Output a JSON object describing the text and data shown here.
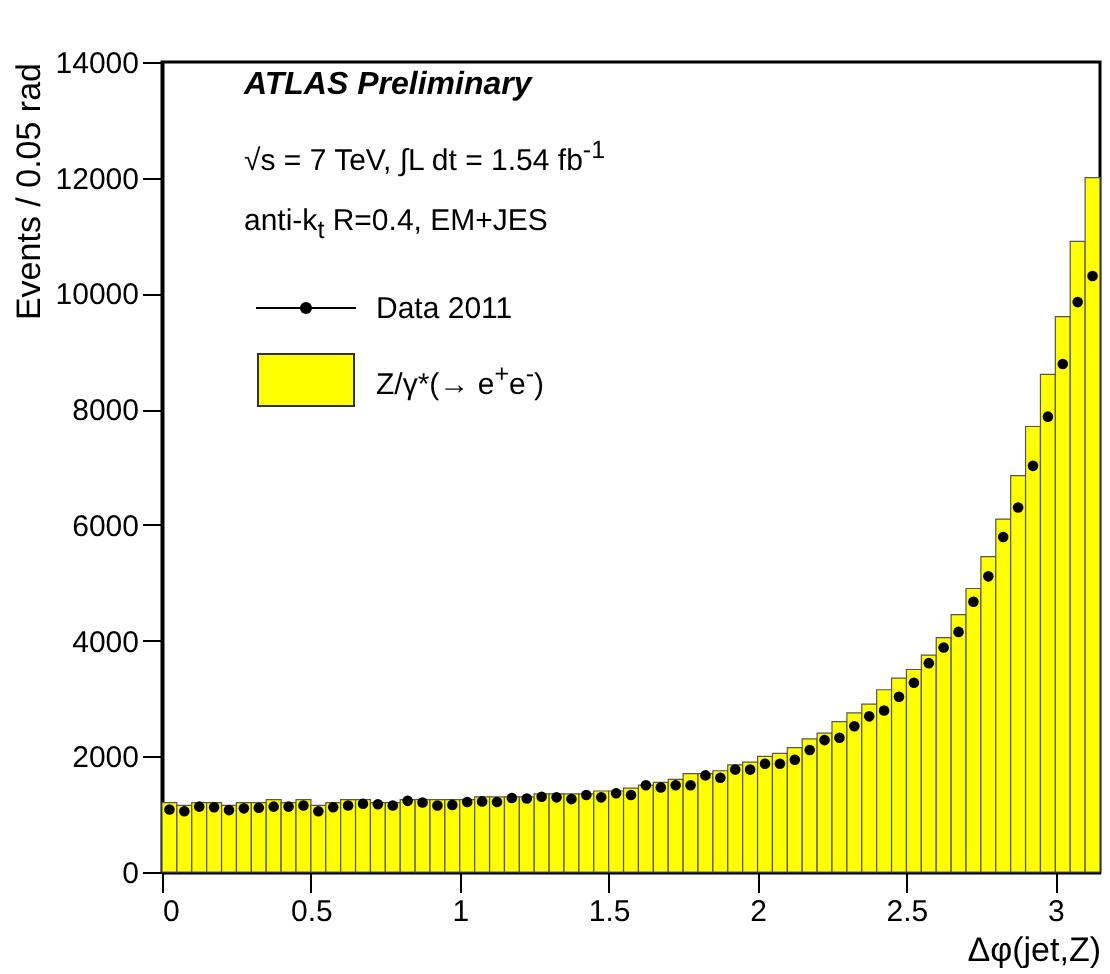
{
  "chart_data": {
    "type": "histogram",
    "xlabel": "Δφ(jet,Z)",
    "ylabel": "Events / 0.05 rad",
    "annotations": [
      "ATLAS Preliminary",
      "√s = 7 TeV, ∫L dt = 1.54 fb$^{-1}$",
      "anti-k$_{t}$ R=0.4, EM+JES"
    ],
    "bins": [
      0,
      0.05,
      0.1,
      0.15,
      0.2,
      0.25,
      0.3,
      0.35,
      0.4,
      0.45,
      0.5,
      0.55,
      0.6,
      0.65,
      0.7,
      0.75,
      0.8,
      0.85,
      0.9,
      0.95,
      1,
      1.05,
      1.1,
      1.15,
      1.2,
      1.25,
      1.3,
      1.35,
      1.4,
      1.45,
      1.5,
      1.55,
      1.6,
      1.65,
      1.7,
      1.75,
      1.8,
      1.85,
      1.9,
      1.95,
      2,
      2.05,
      2.1,
      2.15,
      2.2,
      2.25,
      2.3,
      2.35,
      2.4,
      2.45,
      2.5,
      2.55,
      2.6,
      2.65,
      2.7,
      2.75,
      2.8,
      2.85,
      2.9,
      2.95,
      3,
      3.05,
      3.1,
      3.15
    ],
    "series": [
      {
        "name": "Z/γ*(→ e$^{+}$e$^{-}$)",
        "color": "#ffff00",
        "values": [
          1200,
          1150,
          1200,
          1200,
          1150,
          1200,
          1200,
          1250,
          1200,
          1250,
          1150,
          1200,
          1250,
          1250,
          1200,
          1200,
          1250,
          1250,
          1250,
          1250,
          1250,
          1300,
          1300,
          1300,
          1300,
          1350,
          1350,
          1350,
          1350,
          1400,
          1400,
          1450,
          1500,
          1550,
          1600,
          1700,
          1700,
          1750,
          1850,
          1900,
          2000,
          2050,
          2150,
          2300,
          2400,
          2600,
          2750,
          2900,
          3150,
          3350,
          3500,
          3750,
          4050,
          4450,
          4900,
          5450,
          6100,
          6850,
          7700,
          8600,
          9600,
          10900,
          12000
        ]
      },
      {
        "name": "Data 2011",
        "type": "scatter",
        "color": "#000000",
        "x": [
          0.025,
          0.075,
          0.125,
          0.175,
          0.225,
          0.275,
          0.325,
          0.375,
          0.425,
          0.475,
          0.525,
          0.575,
          0.625,
          0.675,
          0.725,
          0.775,
          0.825,
          0.875,
          0.925,
          0.975,
          1.025,
          1.075,
          1.125,
          1.175,
          1.225,
          1.275,
          1.325,
          1.375,
          1.425,
          1.475,
          1.525,
          1.575,
          1.625,
          1.675,
          1.725,
          1.775,
          1.825,
          1.875,
          1.925,
          1.975,
          2.025,
          2.075,
          2.125,
          2.175,
          2.225,
          2.275,
          2.325,
          2.375,
          2.425,
          2.475,
          2.525,
          2.575,
          2.625,
          2.675,
          2.725,
          2.775,
          2.825,
          2.875,
          2.925,
          2.975,
          3.025,
          3.075,
          3.125
        ],
        "values": [
          1080,
          1050,
          1130,
          1120,
          1070,
          1100,
          1110,
          1130,
          1130,
          1150,
          1050,
          1120,
          1150,
          1180,
          1170,
          1150,
          1230,
          1200,
          1150,
          1160,
          1210,
          1220,
          1210,
          1280,
          1270,
          1300,
          1290,
          1260,
          1330,
          1290,
          1360,
          1330,
          1500,
          1460,
          1500,
          1500,
          1670,
          1630,
          1770,
          1770,
          1870,
          1870,
          1940,
          2110,
          2280,
          2320,
          2520,
          2690,
          2790,
          3030,
          3270,
          3610,
          3880,
          4150,
          4670,
          5110,
          5790,
          6300,
          7020,
          7870,
          8780,
          9850,
          10300
        ]
      }
    ],
    "xlim": [
      0,
      3.15
    ],
    "ylim": [
      0,
      14000
    ],
    "xticks": [
      0,
      0.5,
      1,
      1.5,
      2,
      2.5,
      3
    ],
    "yticks": [
      0,
      2000,
      4000,
      6000,
      8000,
      10000,
      12000,
      14000
    ],
    "grid": false,
    "legend": "top left",
    "marker": "circle"
  }
}
